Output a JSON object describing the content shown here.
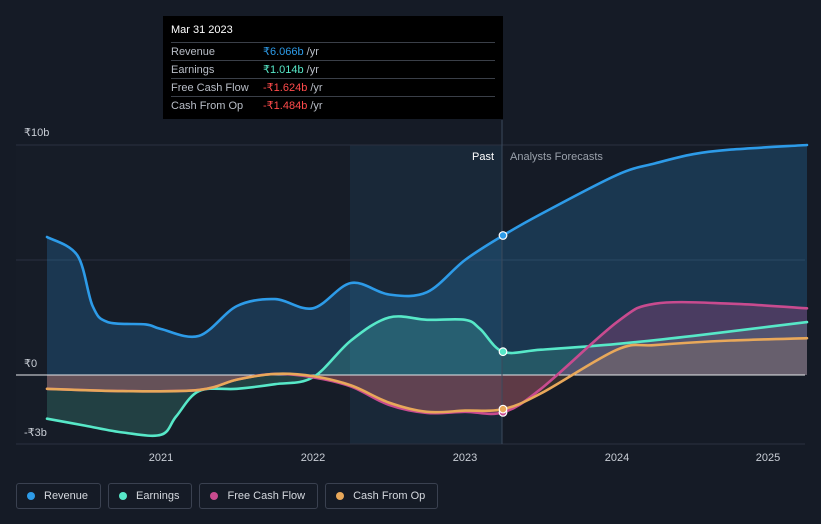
{
  "tooltip": {
    "date": "Mar 31 2023",
    "rows": [
      {
        "label": "Revenue",
        "value": "₹6.066b",
        "unit": "/yr",
        "color": "#2d9be8"
      },
      {
        "label": "Earnings",
        "value": "₹1.014b",
        "unit": "/yr",
        "color": "#57e8c8"
      },
      {
        "label": "Free Cash Flow",
        "value": "-₹1.624b",
        "unit": "/yr",
        "color": "#ff4b4b"
      },
      {
        "label": "Cash From Op",
        "value": "-₹1.484b",
        "unit": "/yr",
        "color": "#ff4b4b"
      }
    ]
  },
  "labels": {
    "past": "Past",
    "forecast": "Analysts Forecasts"
  },
  "legend": [
    {
      "label": "Revenue",
      "color": "#2d9be8"
    },
    {
      "label": "Earnings",
      "color": "#57e8c8"
    },
    {
      "label": "Free Cash Flow",
      "color": "#c84b8f"
    },
    {
      "label": "Cash From Op",
      "color": "#e8a85a"
    }
  ],
  "chart_data": {
    "type": "line",
    "y_tick_labels": [
      "₹10b",
      "₹0",
      "-₹3b"
    ],
    "x_tick_labels": [
      "2021",
      "2022",
      "2023",
      "2024",
      "2025"
    ],
    "ylim": [
      -3,
      10
    ],
    "divider_date": 2023.25,
    "series": [
      {
        "name": "Revenue",
        "color": "#2d9be8",
        "points": [
          [
            2020.25,
            6.0
          ],
          [
            2020.45,
            5.2
          ],
          [
            2020.55,
            3.0
          ],
          [
            2020.65,
            2.3
          ],
          [
            2020.9,
            2.2
          ],
          [
            2021.0,
            2.0
          ],
          [
            2021.25,
            1.7
          ],
          [
            2021.5,
            3.0
          ],
          [
            2021.75,
            3.3
          ],
          [
            2022.0,
            2.9
          ],
          [
            2022.25,
            4.0
          ],
          [
            2022.5,
            3.5
          ],
          [
            2022.75,
            3.6
          ],
          [
            2023.0,
            5.0
          ],
          [
            2023.25,
            6.066
          ],
          [
            2023.5,
            7.0
          ],
          [
            2024.0,
            8.7
          ],
          [
            2024.25,
            9.2
          ],
          [
            2024.5,
            9.6
          ],
          [
            2024.75,
            9.8
          ],
          [
            2025.25,
            10.0
          ]
        ]
      },
      {
        "name": "Earnings",
        "color": "#57e8c8",
        "points": [
          [
            2020.25,
            -1.9
          ],
          [
            2020.5,
            -2.2
          ],
          [
            2020.75,
            -2.5
          ],
          [
            2021.0,
            -2.6
          ],
          [
            2021.1,
            -1.8
          ],
          [
            2021.25,
            -0.7
          ],
          [
            2021.5,
            -0.6
          ],
          [
            2021.75,
            -0.4
          ],
          [
            2022.0,
            -0.1
          ],
          [
            2022.25,
            1.5
          ],
          [
            2022.5,
            2.5
          ],
          [
            2022.75,
            2.4
          ],
          [
            2023.0,
            2.4
          ],
          [
            2023.1,
            2.0
          ],
          [
            2023.25,
            1.014
          ],
          [
            2023.5,
            1.1
          ],
          [
            2024.0,
            1.35
          ],
          [
            2024.5,
            1.7
          ],
          [
            2025.0,
            2.1
          ],
          [
            2025.25,
            2.3
          ]
        ]
      },
      {
        "name": "Free Cash Flow",
        "color": "#c84b8f",
        "points": [
          [
            2020.25,
            -0.6
          ],
          [
            2020.75,
            -0.7
          ],
          [
            2021.25,
            -0.65
          ],
          [
            2021.5,
            -0.2
          ],
          [
            2021.75,
            0.05
          ],
          [
            2022.0,
            -0.1
          ],
          [
            2022.25,
            -0.5
          ],
          [
            2022.5,
            -1.3
          ],
          [
            2022.75,
            -1.65
          ],
          [
            2023.0,
            -1.6
          ],
          [
            2023.25,
            -1.624
          ],
          [
            2023.5,
            -0.6
          ],
          [
            2024.0,
            2.3
          ],
          [
            2024.25,
            3.1
          ],
          [
            2024.75,
            3.1
          ],
          [
            2025.25,
            2.9
          ]
        ]
      },
      {
        "name": "Cash From Op",
        "color": "#e8a85a",
        "points": [
          [
            2020.25,
            -0.6
          ],
          [
            2020.75,
            -0.7
          ],
          [
            2021.25,
            -0.65
          ],
          [
            2021.5,
            -0.2
          ],
          [
            2021.75,
            0.05
          ],
          [
            2022.0,
            -0.05
          ],
          [
            2022.25,
            -0.45
          ],
          [
            2022.5,
            -1.2
          ],
          [
            2022.75,
            -1.6
          ],
          [
            2023.0,
            -1.55
          ],
          [
            2023.25,
            -1.484
          ],
          [
            2023.5,
            -0.8
          ],
          [
            2024.0,
            1.1
          ],
          [
            2024.25,
            1.3
          ],
          [
            2024.75,
            1.5
          ],
          [
            2025.25,
            1.6
          ]
        ]
      }
    ]
  }
}
